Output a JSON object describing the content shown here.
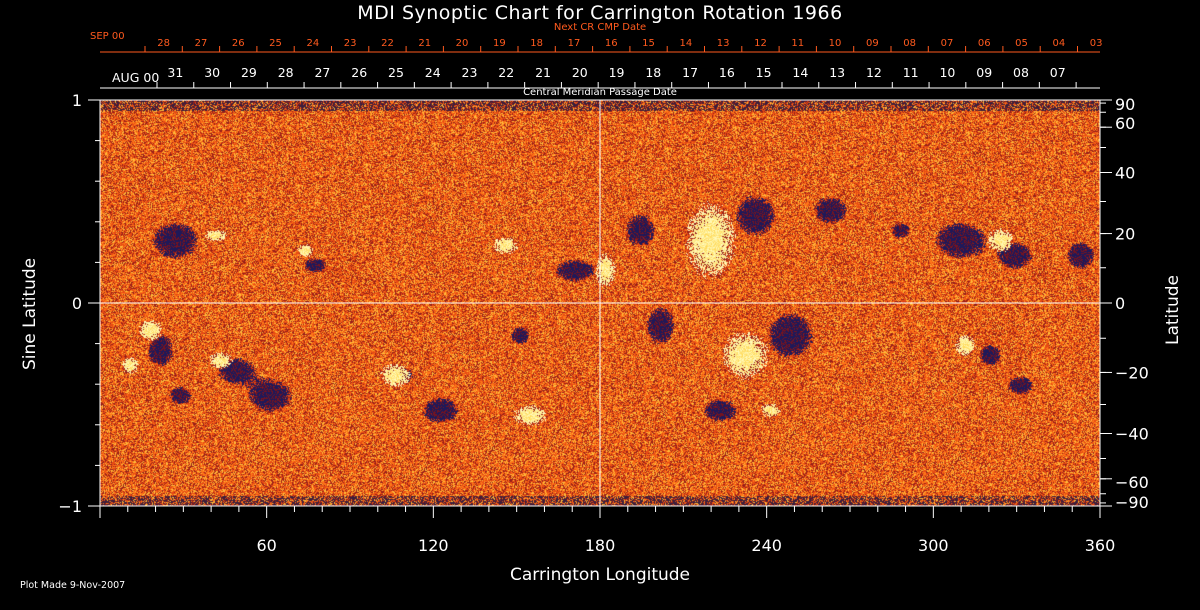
{
  "chart_data": {
    "type": "heatmap",
    "title": "MDI Synoptic Chart for Carrington Rotation 1966",
    "xlabel": "Carrington Longitude",
    "ylabel_left": "Sine Latitude",
    "ylabel_right": "Latitude",
    "xlim": [
      0,
      360
    ],
    "ylim_sine": [
      -1,
      1
    ],
    "x_ticks": [
      "60",
      "120",
      "180",
      "240",
      "300",
      "360"
    ],
    "x_tick_values": [
      60,
      120,
      180,
      240,
      300,
      360
    ],
    "y_left_ticks": [
      "1",
      "0",
      "−1"
    ],
    "y_left_tick_values": [
      1,
      0,
      -1
    ],
    "y_right_ticks": [
      "90",
      "60",
      "40",
      "20",
      "0",
      "−20",
      "−40",
      "−60",
      "−90"
    ],
    "y_right_tick_values": [
      90,
      60,
      40,
      20,
      0,
      -20,
      -40,
      -60,
      -90
    ],
    "grid_lines": {
      "x": [
        180
      ],
      "y": [
        0
      ]
    },
    "top_axis_label": "Central Meridian Passage Date",
    "top_axis_month_label": "AUG 00",
    "top_axis_dates": [
      "31",
      "30",
      "29",
      "28",
      "27",
      "26",
      "25",
      "24",
      "23",
      "22",
      "21",
      "20",
      "19",
      "18",
      "17",
      "16",
      "15",
      "14",
      "13",
      "12",
      "11",
      "10",
      "09",
      "08",
      "07"
    ],
    "next_cr_label": "Next CR CMP Date",
    "next_cr_month_label": "SEP 00",
    "next_cr_dates": [
      "28",
      "27",
      "26",
      "25",
      "24",
      "23",
      "22",
      "21",
      "20",
      "19",
      "18",
      "17",
      "16",
      "15",
      "14",
      "13",
      "12",
      "11",
      "10",
      "09",
      "08",
      "07",
      "06",
      "05",
      "04",
      "03"
    ],
    "colormap": [
      "#1a1a5e",
      "#7a1a1a",
      "#e8501a",
      "#ff8a1a",
      "#ffd040",
      "#ffffff"
    ]
  },
  "footer": {
    "plot_made": "Plot Made  9-Nov-2007"
  },
  "colors": {
    "background": "#000000",
    "axis": "#ffffff",
    "secondary_axis": "#ff5a1e"
  }
}
